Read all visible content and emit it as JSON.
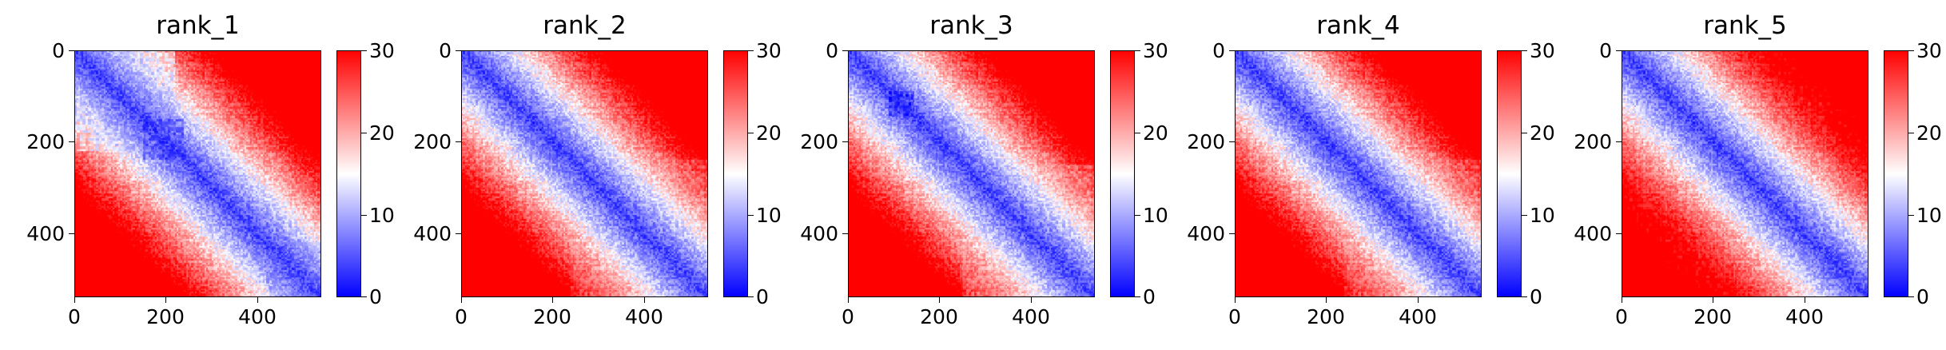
{
  "chart_data": [
    {
      "type": "heatmap",
      "title": "rank_1",
      "n": 540,
      "colormap": "bwr",
      "vmin": 0,
      "vmax": 30,
      "x_ticks": [
        "0",
        "200",
        "400"
      ],
      "y_ticks": [
        "0",
        "200",
        "400"
      ],
      "colorbar_ticks": [
        "0",
        "10",
        "20",
        "30"
      ],
      "blocks": [
        {
          "start": 0,
          "end": 220,
          "level": 9
        },
        {
          "start": 150,
          "end": 240,
          "level": 5
        },
        {
          "start": 200,
          "end": 340,
          "level": 12
        },
        {
          "start": 330,
          "end": 460,
          "level": 13
        },
        {
          "start": 420,
          "end": 540,
          "level": 8
        }
      ]
    },
    {
      "type": "heatmap",
      "title": "rank_2",
      "n": 540,
      "colormap": "bwr",
      "vmin": 0,
      "vmax": 30,
      "x_ticks": [
        "0",
        "200",
        "400"
      ],
      "y_ticks": [
        "0",
        "200",
        "400"
      ],
      "colorbar_ticks": [
        "0",
        "10",
        "20",
        "30"
      ],
      "blocks": [
        {
          "start": 0,
          "end": 150,
          "level": 17
        },
        {
          "start": 150,
          "end": 240,
          "level": 8
        },
        {
          "start": 240,
          "end": 540,
          "level": 15
        }
      ]
    },
    {
      "type": "heatmap",
      "title": "rank_3",
      "n": 540,
      "colormap": "bwr",
      "vmin": 0,
      "vmax": 30,
      "x_ticks": [
        "0",
        "200",
        "400"
      ],
      "y_ticks": [
        "0",
        "200",
        "400"
      ],
      "colorbar_ticks": [
        "0",
        "10",
        "20",
        "30"
      ],
      "blocks": [
        {
          "start": 90,
          "end": 145,
          "level": 3
        },
        {
          "start": 150,
          "end": 240,
          "level": 8
        },
        {
          "start": 250,
          "end": 540,
          "level": 14
        }
      ]
    },
    {
      "type": "heatmap",
      "title": "rank_4",
      "n": 540,
      "colormap": "bwr",
      "vmin": 0,
      "vmax": 30,
      "x_ticks": [
        "0",
        "200",
        "400"
      ],
      "y_ticks": [
        "0",
        "200",
        "400"
      ],
      "colorbar_ticks": [
        "0",
        "10",
        "20",
        "30"
      ],
      "blocks": [
        {
          "start": 0,
          "end": 150,
          "level": 17
        },
        {
          "start": 165,
          "end": 235,
          "level": 8
        },
        {
          "start": 240,
          "end": 540,
          "level": 15
        }
      ]
    },
    {
      "type": "heatmap",
      "title": "rank_5",
      "n": 540,
      "colormap": "bwr",
      "vmin": 0,
      "vmax": 30,
      "x_ticks": [
        "0",
        "200",
        "400"
      ],
      "y_ticks": [
        "0",
        "200",
        "400"
      ],
      "colorbar_ticks": [
        "0",
        "10",
        "20",
        "30"
      ],
      "blocks": [
        {
          "start": 0,
          "end": 540,
          "level": 18
        },
        {
          "start": 440,
          "end": 500,
          "level": 6
        }
      ]
    }
  ]
}
